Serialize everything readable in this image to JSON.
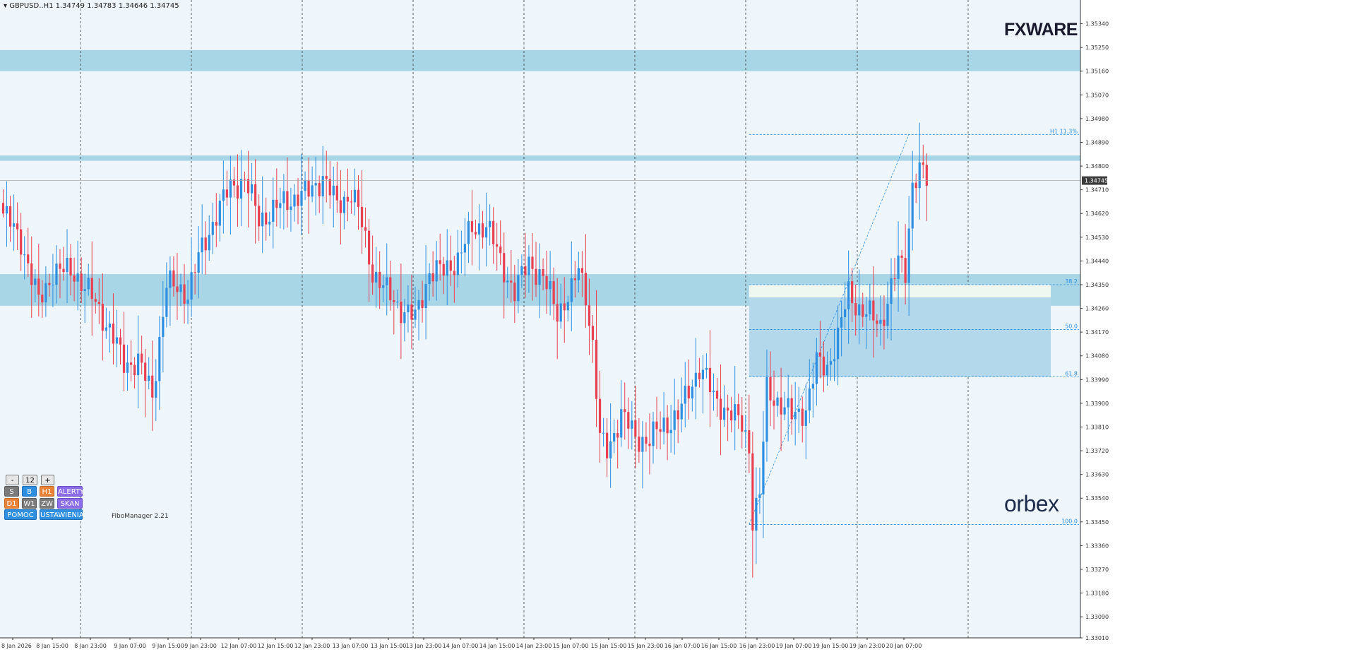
{
  "title": "GBPUSD..H1  1.34749 1.34783 1.34646 1.34745",
  "current_price": "1.34745",
  "watermark": {
    "top_logo": "FXWARE",
    "bottom_logo": "orbex"
  },
  "indicator_label": "FiboManager 2.21",
  "colors": {
    "bull": "#2e8fe0",
    "bear": "#e84050",
    "zone": "#a8d6e6",
    "background": "#eef6fc",
    "fib": "#2e8fe0"
  },
  "chart_data": {
    "type": "candlestick",
    "symbol": "GBPUSD..",
    "timeframe": "H1",
    "ylim": [
      1.3301,
      1.3543
    ],
    "y_ticks": [
      "1.35340",
      "1.35250",
      "1.35160",
      "1.35070",
      "1.34980",
      "1.34890",
      "1.34800",
      "1.34710",
      "1.34620",
      "1.34530",
      "1.34440",
      "1.34350",
      "1.34260",
      "1.34170",
      "1.34080",
      "1.33990",
      "1.33900",
      "1.33810",
      "1.33720",
      "1.33630",
      "1.33540",
      "1.33450",
      "1.33360",
      "1.33270",
      "1.33180",
      "1.33090",
      "1.33010"
    ],
    "x_labels": [
      "8 Jan 2026",
      "8 Jan 15:00",
      "8 Jan 23:00",
      "9 Jan 07:00",
      "9 Jan 15:00",
      "9 Jan 23:00",
      "12 Jan 07:00",
      "12 Jan 15:00",
      "12 Jan 23:00",
      "13 Jan 07:00",
      "13 Jan 15:00",
      "13 Jan 23:00",
      "14 Jan 07:00",
      "14 Jan 15:00",
      "14 Jan 23:00",
      "15 Jan 07:00",
      "15 Jan 15:00",
      "15 Jan 23:00",
      "16 Jan 07:00",
      "16 Jan 15:00",
      "16 Jan 23:00",
      "19 Jan 07:00",
      "19 Jan 15:00",
      "19 Jan 23:00",
      "20 Jan 07:00"
    ],
    "price_zones": [
      {
        "from": 1.3516,
        "to": 1.3524
      },
      {
        "from": 1.3482,
        "to": 1.3484
      },
      {
        "from": 1.3427,
        "to": 1.3439
      }
    ],
    "fibonacci": {
      "high": 1.3492,
      "low": 1.3344,
      "levels": [
        {
          "label": "H1 11.3%",
          "price": 1.3492
        },
        {
          "label": "38.2",
          "price": 1.3435
        },
        {
          "label": "50.0",
          "price": 1.3418
        },
        {
          "label": "61.8",
          "price": 1.34
        },
        {
          "label": "100.0",
          "price": 1.3344
        }
      ]
    },
    "anchors": [
      [
        0,
        1.3462
      ],
      [
        5,
        1.3452
      ],
      [
        10,
        1.3428
      ],
      [
        14,
        1.344
      ],
      [
        20,
        1.344
      ],
      [
        26,
        1.3428
      ],
      [
        30,
        1.3418
      ],
      [
        34,
        1.3405
      ],
      [
        38,
        1.3406
      ],
      [
        42,
        1.3393
      ],
      [
        46,
        1.3435
      ],
      [
        52,
        1.3432
      ],
      [
        55,
        1.3445
      ],
      [
        60,
        1.3462
      ],
      [
        64,
        1.3472
      ],
      [
        68,
        1.3475
      ],
      [
        72,
        1.346
      ],
      [
        76,
        1.3463
      ],
      [
        80,
        1.3467
      ],
      [
        86,
        1.347
      ],
      [
        90,
        1.3476
      ],
      [
        94,
        1.3465
      ],
      [
        98,
        1.347
      ],
      [
        100,
        1.3463
      ],
      [
        104,
        1.344
      ],
      [
        108,
        1.3432
      ],
      [
        112,
        1.3426
      ],
      [
        116,
        1.3422
      ],
      [
        120,
        1.344
      ],
      [
        124,
        1.344
      ],
      [
        128,
        1.3445
      ],
      [
        132,
        1.3456
      ],
      [
        136,
        1.3458
      ],
      [
        140,
        1.3444
      ],
      [
        144,
        1.3432
      ],
      [
        148,
        1.3444
      ],
      [
        152,
        1.3437
      ],
      [
        156,
        1.3425
      ],
      [
        160,
        1.3432
      ],
      [
        162,
        1.3441
      ],
      [
        164,
        1.3432
      ],
      [
        166,
        1.3412
      ],
      [
        168,
        1.3376
      ],
      [
        170,
        1.3372
      ],
      [
        174,
        1.3386
      ],
      [
        178,
        1.3377
      ],
      [
        182,
        1.3376
      ],
      [
        186,
        1.3382
      ],
      [
        190,
        1.3385
      ],
      [
        194,
        1.3398
      ],
      [
        196,
        1.3404
      ],
      [
        198,
        1.3399
      ],
      [
        200,
        1.3392
      ],
      [
        204,
        1.3387
      ],
      [
        208,
        1.3382
      ],
      [
        210,
        1.3374
      ],
      [
        211,
        1.3346
      ],
      [
        213,
        1.3355
      ],
      [
        215,
        1.3395
      ],
      [
        218,
        1.3391
      ],
      [
        222,
        1.3385
      ],
      [
        226,
        1.3388
      ],
      [
        229,
        1.3405
      ],
      [
        232,
        1.3404
      ],
      [
        235,
        1.3415
      ],
      [
        238,
        1.3432
      ],
      [
        241,
        1.3426
      ],
      [
        244,
        1.3423
      ],
      [
        247,
        1.342
      ],
      [
        250,
        1.3434
      ],
      [
        252,
        1.3443
      ],
      [
        254,
        1.344
      ],
      [
        256,
        1.3474
      ],
      [
        258,
        1.3478
      ],
      [
        259,
        1.3477
      ],
      [
        260,
        1.3474
      ]
    ]
  },
  "controls": {
    "minus": "-",
    "size": "12",
    "plus": "+",
    "row1": [
      "S",
      "B",
      "H1",
      "ALERTY"
    ],
    "row2": [
      "D1",
      "W1",
      "ZW",
      "SKAN"
    ],
    "help": "POMOC",
    "settings": "USTAWIENIA"
  }
}
